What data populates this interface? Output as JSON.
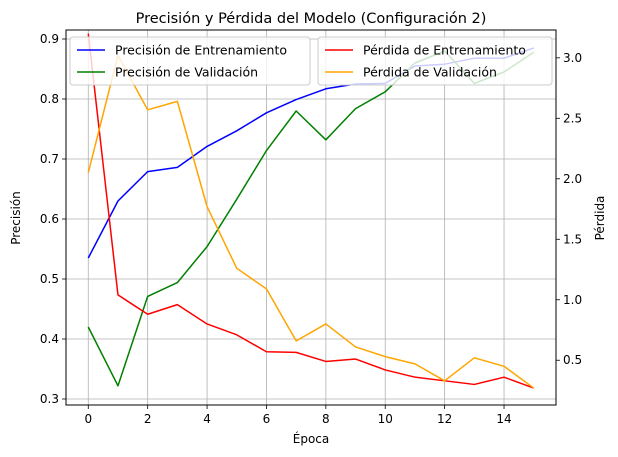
{
  "chart_data": {
    "type": "line",
    "title": "Precisión y Pérdida del Modelo (Configuración 2)",
    "xlabel": "Época",
    "ylabel_left": "Precisión",
    "ylabel_right": "Pérdida",
    "x": [
      0,
      1,
      2,
      3,
      4,
      5,
      6,
      7,
      8,
      9,
      10,
      11,
      12,
      13,
      14,
      15
    ],
    "xlim": [
      -0.75,
      15.75
    ],
    "xticks": [
      0,
      2,
      4,
      6,
      8,
      10,
      12,
      14
    ],
    "ylim_left": [
      0.29,
      0.915
    ],
    "yticks_left": [
      0.3,
      0.4,
      0.5,
      0.6,
      0.7,
      0.8,
      0.9
    ],
    "ylim_right": [
      0.13,
      3.23
    ],
    "yticks_right": [
      0.5,
      1.0,
      1.5,
      2.0,
      2.5,
      3.0
    ],
    "grid": true,
    "series": [
      {
        "name": "Precisión de Entrenamiento",
        "axis": "left",
        "color": "#0000ff",
        "values": [
          0.535,
          0.63,
          0.679,
          0.686,
          0.721,
          0.747,
          0.777,
          0.799,
          0.817,
          0.825,
          0.826,
          0.855,
          0.858,
          0.868,
          0.868,
          0.885
        ]
      },
      {
        "name": "Precisión de Validación",
        "axis": "left",
        "color": "#008000",
        "values": [
          0.42,
          0.322,
          0.471,
          0.494,
          0.554,
          0.633,
          0.714,
          0.78,
          0.732,
          0.784,
          0.812,
          0.86,
          0.88,
          0.826,
          0.845,
          0.878
        ]
      },
      {
        "name": "Pérdida de Entrenamiento",
        "axis": "right",
        "color": "#ff0000",
        "values": [
          3.2,
          1.04,
          0.88,
          0.96,
          0.8,
          0.71,
          0.57,
          0.565,
          0.49,
          0.51,
          0.42,
          0.36,
          0.33,
          0.3,
          0.36,
          0.27
        ]
      },
      {
        "name": "Pérdida de Validación",
        "axis": "right",
        "color": "#ffa500",
        "values": [
          2.05,
          3.02,
          2.57,
          2.64,
          1.77,
          1.26,
          1.09,
          0.66,
          0.8,
          0.61,
          0.53,
          0.47,
          0.33,
          0.52,
          0.45,
          0.27
        ]
      }
    ],
    "legends": [
      {
        "placement": "top-left",
        "series": [
          0,
          1
        ]
      },
      {
        "placement": "top-right",
        "series": [
          2,
          3
        ]
      }
    ]
  }
}
